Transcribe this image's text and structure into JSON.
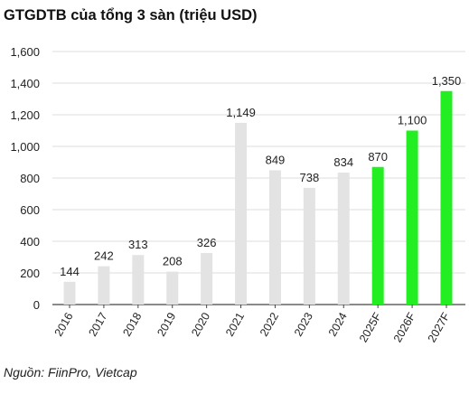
{
  "title": "GTGDTB của tổng 3 sàn (triệu USD)",
  "source": "Nguồn: FiinPro, Vietcap",
  "colors": {
    "actual": "#e3e3e3",
    "forecast": "#22ee22",
    "axis": "#444444",
    "grid": "#dcdcdc"
  },
  "chart_data": {
    "type": "bar",
    "title": "GTGDTB của tổng 3 sàn (triệu USD)",
    "xlabel": "",
    "ylabel": "",
    "ylim": [
      0,
      1600
    ],
    "yticks": [
      0,
      200,
      400,
      600,
      800,
      1000,
      1200,
      1400,
      1600
    ],
    "ytick_labels": [
      "0",
      "200",
      "400",
      "600",
      "800",
      "1,000",
      "1,200",
      "1,400",
      "1,600"
    ],
    "grid": true,
    "categories": [
      "2016",
      "2017",
      "2018",
      "2019",
      "2020",
      "2021",
      "2022",
      "2023",
      "2024",
      "2025F",
      "2026F",
      "2027F"
    ],
    "values": [
      144,
      242,
      313,
      208,
      326,
      1149,
      849,
      738,
      834,
      870,
      1100,
      1350
    ],
    "labels": [
      "144",
      "242",
      "313",
      "208",
      "326",
      "1,149",
      "849",
      "738",
      "834",
      "870",
      "1,100",
      "1,350"
    ],
    "forecast": [
      false,
      false,
      false,
      false,
      false,
      false,
      false,
      false,
      false,
      true,
      true,
      true
    ]
  }
}
